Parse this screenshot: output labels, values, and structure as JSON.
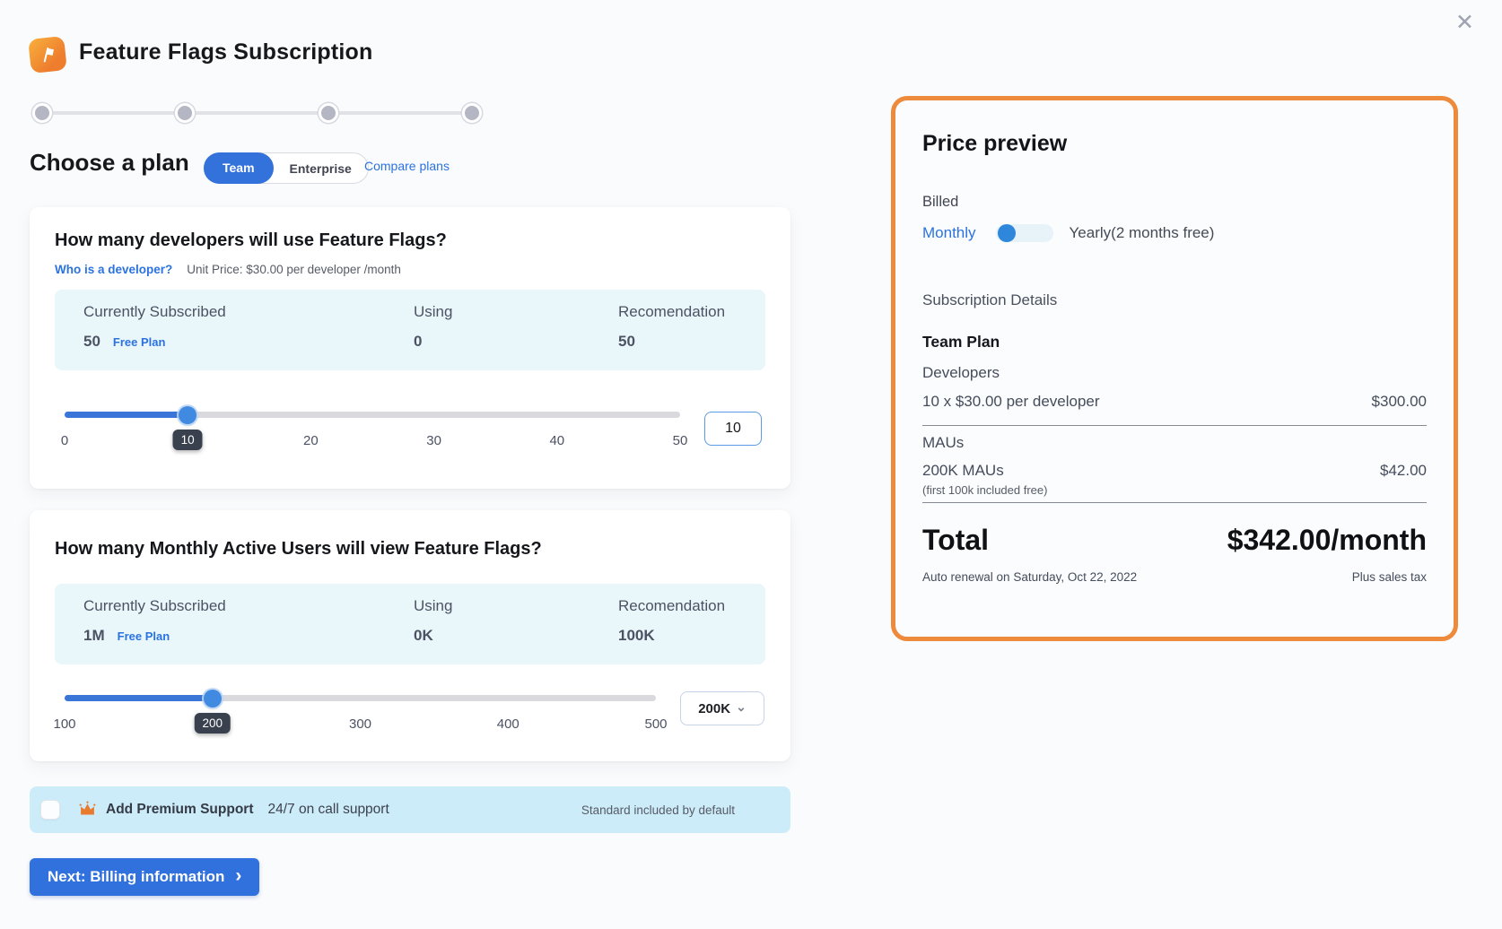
{
  "header": {
    "title": "Feature Flags Subscription"
  },
  "icons": {
    "close": "✕",
    "chevron_down": "⌄",
    "chevron_right": "›"
  },
  "stepper": {
    "step_count": 4
  },
  "plan_selector": {
    "heading": "Choose a plan",
    "team_label": "Team",
    "enterprise_label": "Enterprise",
    "selected": "Team",
    "compare_link": "Compare plans"
  },
  "cards": [
    {
      "heading": "How many developers will use Feature Flags?",
      "link": "Who is a developer?",
      "unit_price": "Unit Price: $30.00 per developer /month",
      "info": {
        "col1": "Currently Subscribed",
        "col2": "Using",
        "col3": "Recomendation",
        "subscribed": "50",
        "plan_badge": "Free Plan",
        "using": "0",
        "recommendation": "50"
      },
      "slider": {
        "min": 0,
        "max": 50,
        "value": 10,
        "fill_pct": "20%",
        "badge": "10",
        "ticks": [
          "0",
          "20",
          "30",
          "40",
          "50"
        ]
      },
      "input_value": "10"
    },
    {
      "heading": "How many Monthly Active Users will view Feature Flags?",
      "info": {
        "col1": "Currently Subscribed",
        "col2": "Using",
        "col3": "Recomendation",
        "subscribed": "1M",
        "plan_badge": "Free Plan",
        "using": "0K",
        "recommendation": "100K"
      },
      "slider": {
        "min": 100,
        "max": 500,
        "value": 200,
        "fill_pct": "25%",
        "badge": "200",
        "ticks": [
          "100",
          "300",
          "400",
          "500"
        ]
      },
      "select_value": "200K"
    }
  ],
  "premium_support": {
    "title": "Add Premium Support",
    "subtitle": "24/7 on call support",
    "note": "Standard included by default",
    "checked": false
  },
  "next_button": {
    "label": "Next: Billing information"
  },
  "price_preview": {
    "title": "Price preview",
    "billed_label": "Billed",
    "monthly_label": "Monthly",
    "yearly_label": "Yearly(2 months free)",
    "billing_period": "Monthly",
    "section_title": "Subscription Details",
    "plan_name": "Team Plan",
    "developers_label": "Developers",
    "developers_line": "10 x $30.00 per developer",
    "developers_price": "$300.00",
    "maus_label": "MAUs",
    "maus_line": "200K MAUs",
    "maus_note": "(first 100k included free)",
    "maus_price": "$42.00",
    "total_label": "Total",
    "total_value": "$342.00/month",
    "renewal_note": "Auto renewal on Saturday, Oct 22, 2022",
    "tax_note": "Plus sales tax"
  },
  "colors": {
    "accent_blue": "#3171dd",
    "link_blue": "#2b72e0",
    "highlight_orange": "#ed8a3c",
    "crown_orange": "#e87b2e",
    "info_box_bg": "#e9f7fb",
    "premium_row_bg": "#cdecf9",
    "slider_fill": "#3a75d8",
    "value_badge_bg": "#3a414e"
  }
}
